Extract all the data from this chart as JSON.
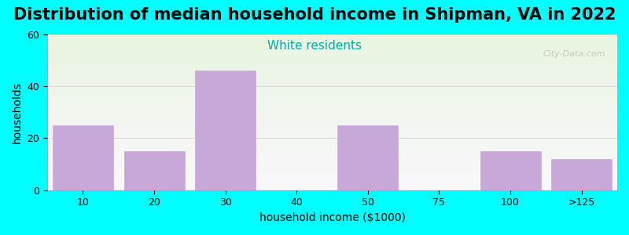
{
  "title": "Distribution of median household income in Shipman, VA in 2022",
  "subtitle": "White residents",
  "xlabel": "household income ($1000)",
  "ylabel": "households",
  "categories": [
    "10",
    "20",
    "30",
    "40",
    "50",
    "75",
    "100",
    ">125"
  ],
  "values": [
    25,
    15,
    46,
    0,
    25,
    0,
    15,
    12
  ],
  "bar_color": "#c8a8d8",
  "bar_edgecolor": "#c8a8d8",
  "background_color": "#00FFFF",
  "plot_bg_top": "#e8f5e0",
  "plot_bg_bottom": "#faf8fc",
  "ylim": [
    0,
    60
  ],
  "yticks": [
    0,
    20,
    40,
    60
  ],
  "title_fontsize": 15,
  "subtitle_color": "#00AAAA",
  "subtitle_fontsize": 11,
  "xlabel_fontsize": 10,
  "ylabel_fontsize": 10,
  "tick_fontsize": 9,
  "watermark": "City-Data.com"
}
